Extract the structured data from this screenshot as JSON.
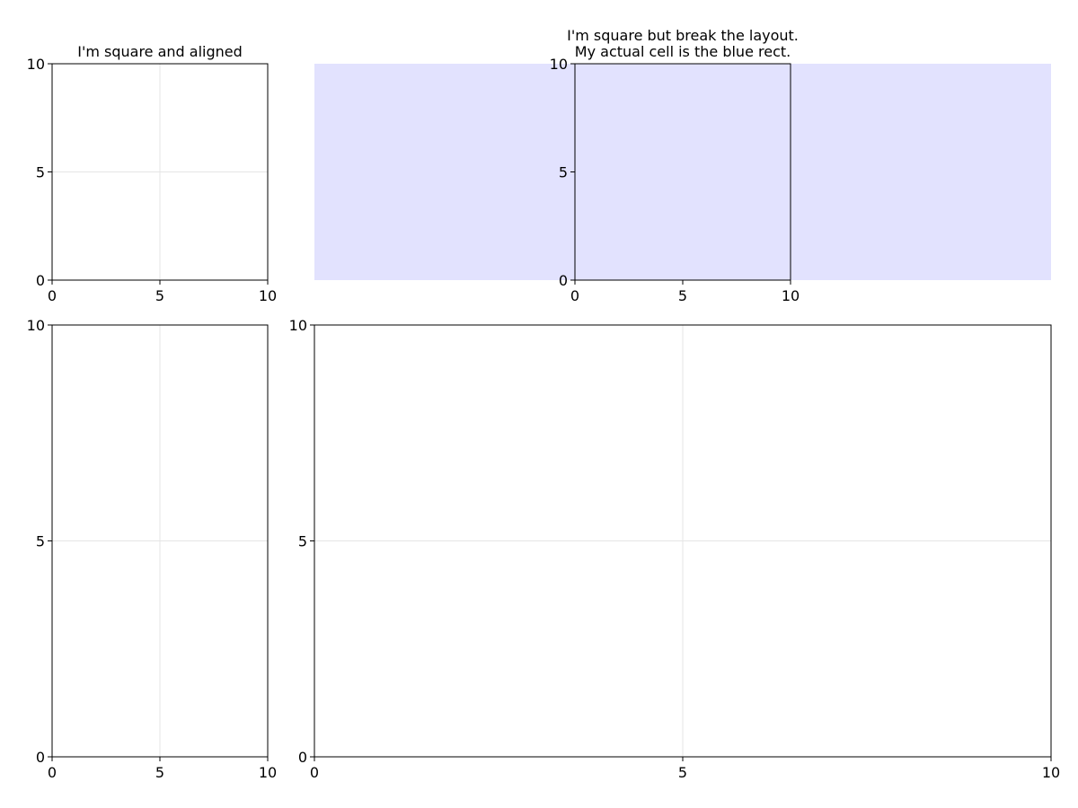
{
  "colors": {
    "background": "#ffffff",
    "frame": "#000000",
    "grid": "#e5e5e5",
    "cell_rect": "#e2e2fe"
  },
  "chart_data": [
    {
      "type": "scatter",
      "title": "I'm square and aligned",
      "series": [],
      "xlim": [
        0,
        10
      ],
      "ylim": [
        0,
        10
      ],
      "x_ticks": [
        "0",
        "5",
        "10"
      ],
      "y_ticks": [
        "0",
        "5",
        "10"
      ],
      "grid": true
    },
    {
      "type": "scatter",
      "title_lines": [
        "I'm square but break the layout.",
        "My actual cell is the blue rect."
      ],
      "series": [],
      "xlim": [
        0,
        10
      ],
      "ylim": [
        0,
        10
      ],
      "x_ticks": [
        "0",
        "5",
        "10"
      ],
      "y_ticks": [
        "0",
        "5",
        "10"
      ],
      "grid": false,
      "cell_highlight_color": "#e2e2fe"
    },
    {
      "type": "scatter",
      "series": [],
      "xlim": [
        0,
        10
      ],
      "ylim": [
        0,
        10
      ],
      "x_ticks": [
        "0",
        "5",
        "10"
      ],
      "y_ticks": [
        "0",
        "5",
        "10"
      ],
      "grid": true
    },
    {
      "type": "scatter",
      "series": [],
      "xlim": [
        0,
        10
      ],
      "ylim": [
        0,
        10
      ],
      "x_ticks": [
        "0",
        "5",
        "10"
      ],
      "y_ticks": [
        "0",
        "5",
        "10"
      ],
      "grid": true
    }
  ]
}
